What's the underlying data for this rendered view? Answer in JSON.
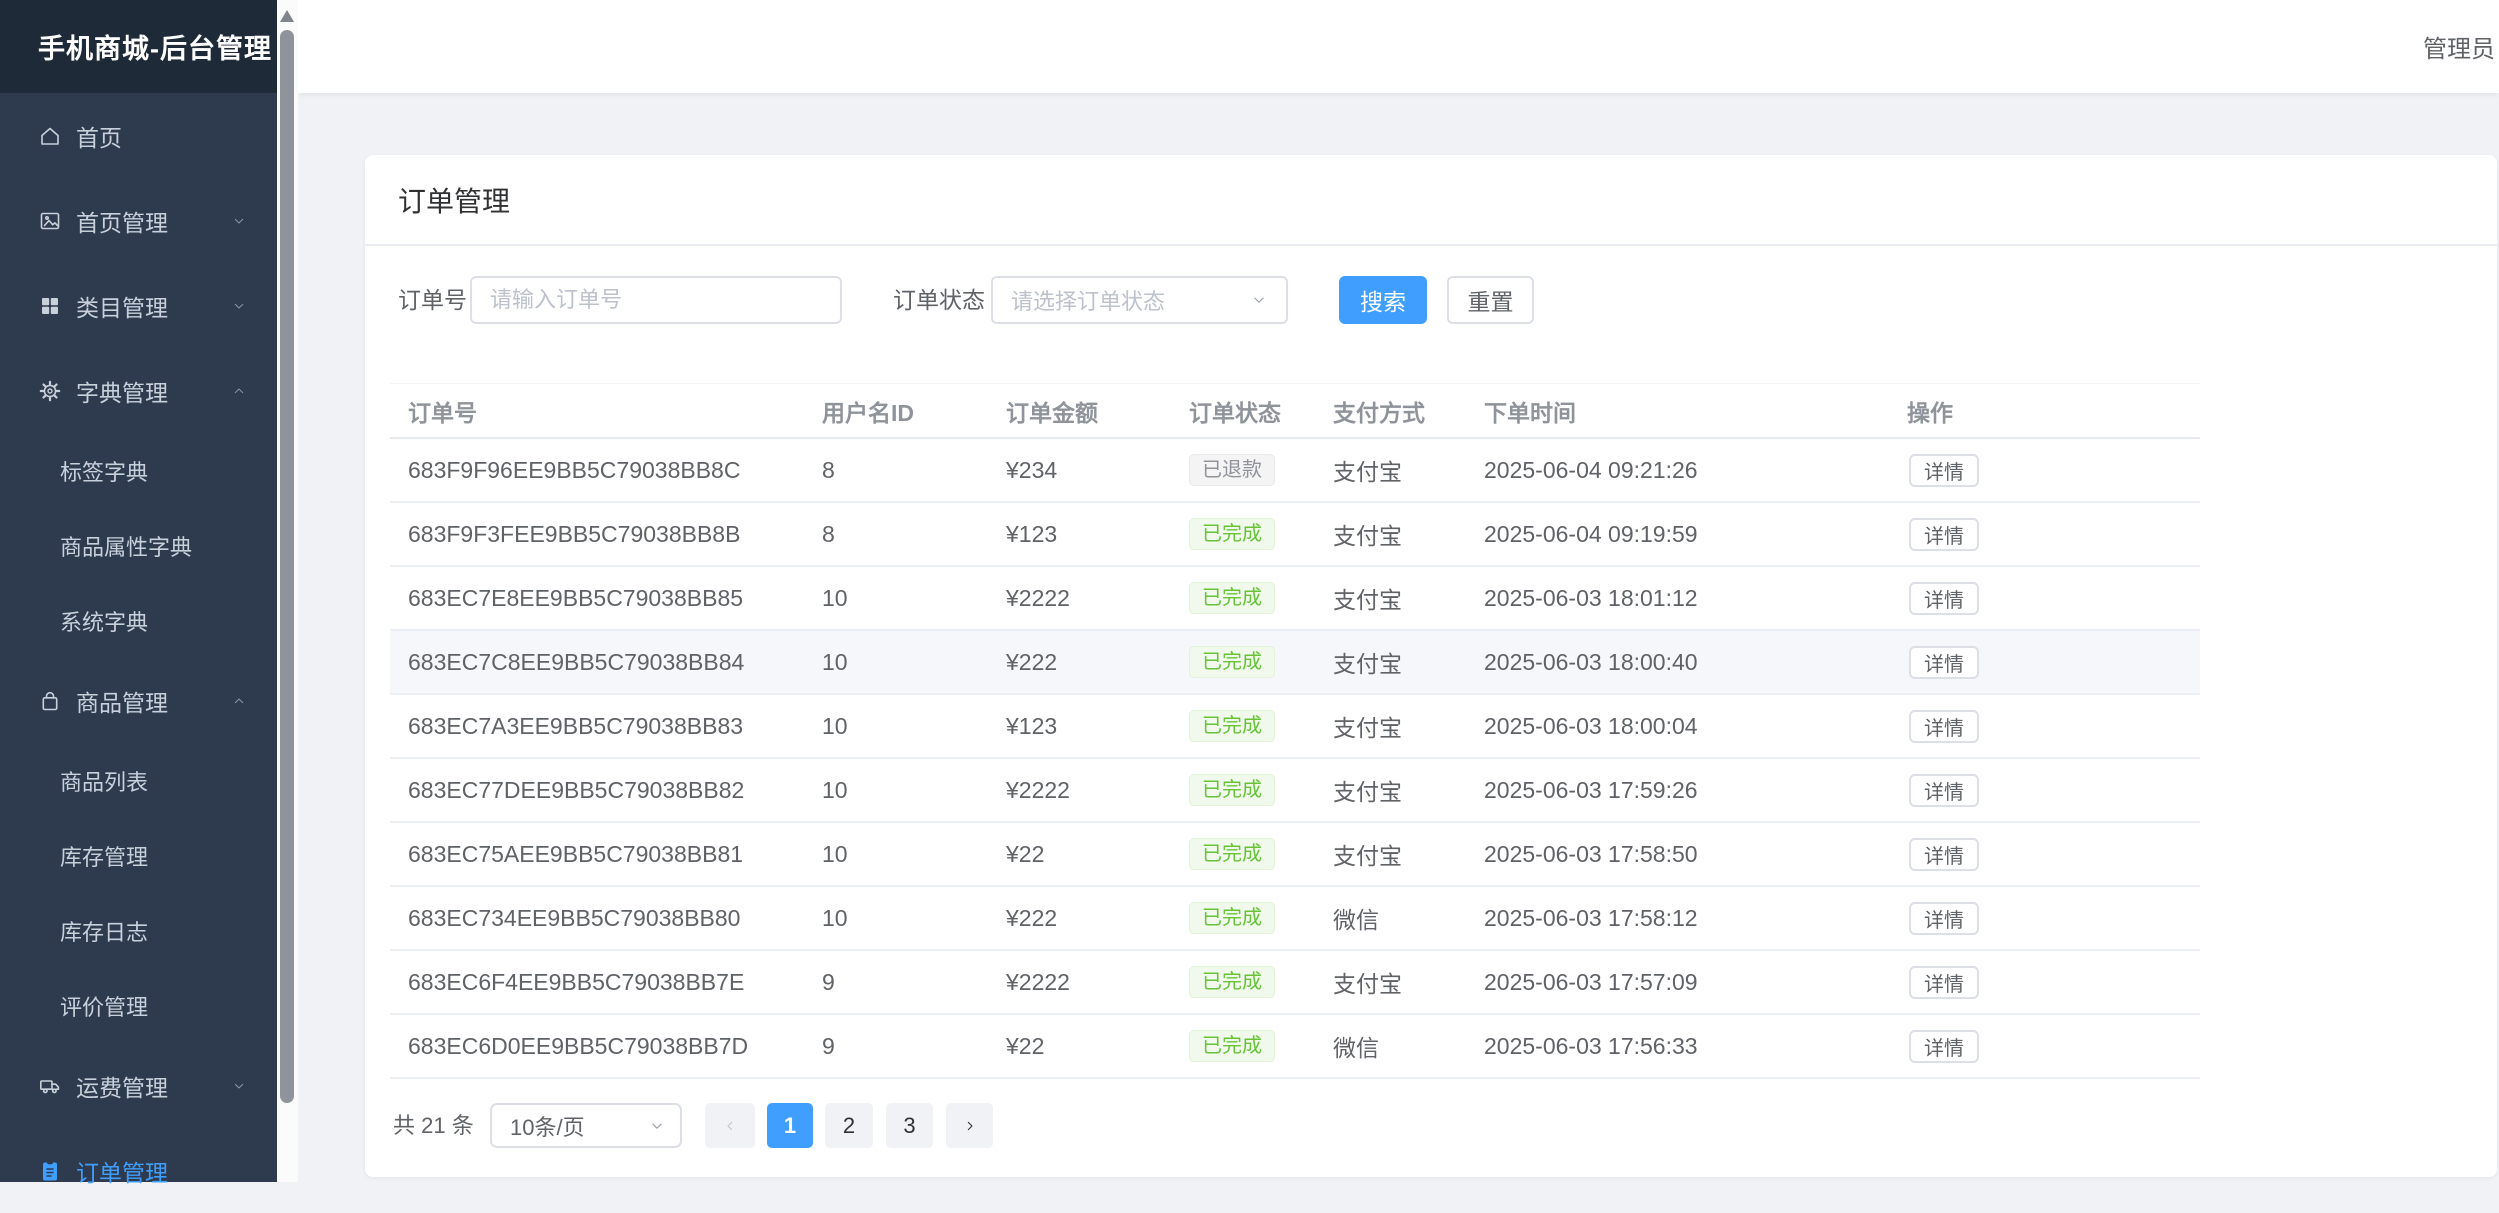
{
  "colors": {
    "accent": "#409eff",
    "success": "#67c23a",
    "info": "#909399",
    "sidebar_bg": "#2e3b4e",
    "sidebar_header_bg": "#1f2a38"
  },
  "app": {
    "title": "手机商城-后台管理",
    "user": "管理员"
  },
  "sidebar": {
    "items": [
      {
        "key": "home",
        "label": "首页",
        "icon": "home-icon",
        "type": "item",
        "expand": null,
        "active": false
      },
      {
        "key": "home-mgmt",
        "label": "首页管理",
        "icon": "image-icon",
        "type": "item",
        "expand": "down",
        "active": false
      },
      {
        "key": "category-mgmt",
        "label": "类目管理",
        "icon": "grid-icon",
        "type": "item",
        "expand": "down",
        "active": false
      },
      {
        "key": "dict-mgmt",
        "label": "字典管理",
        "icon": "gear-icon",
        "type": "item",
        "expand": "up",
        "active": false
      },
      {
        "key": "tag-dict",
        "label": "标签字典",
        "icon": null,
        "type": "sub",
        "expand": null,
        "active": false
      },
      {
        "key": "attr-dict",
        "label": "商品属性字典",
        "icon": null,
        "type": "sub",
        "expand": null,
        "active": false
      },
      {
        "key": "system-dict",
        "label": "系统字典",
        "icon": null,
        "type": "sub",
        "expand": null,
        "active": false
      },
      {
        "key": "product-mgmt",
        "label": "商品管理",
        "icon": "bag-icon",
        "type": "item",
        "expand": "up",
        "active": false
      },
      {
        "key": "product-list",
        "label": "商品列表",
        "icon": null,
        "type": "sub",
        "expand": null,
        "active": false
      },
      {
        "key": "stock-mgmt",
        "label": "库存管理",
        "icon": null,
        "type": "sub",
        "expand": null,
        "active": false
      },
      {
        "key": "stock-log",
        "label": "库存日志",
        "icon": null,
        "type": "sub",
        "expand": null,
        "active": false
      },
      {
        "key": "review-mgmt",
        "label": "评价管理",
        "icon": null,
        "type": "sub",
        "expand": null,
        "active": false
      },
      {
        "key": "shipping-mgmt",
        "label": "运费管理",
        "icon": "truck-icon",
        "type": "item",
        "expand": "down",
        "active": false
      },
      {
        "key": "order-mgmt",
        "label": "订单管理",
        "icon": "order-icon",
        "type": "item",
        "expand": null,
        "active": true
      }
    ]
  },
  "page": {
    "title": "订单管理"
  },
  "filters": {
    "order_no_label": "订单号",
    "order_no_placeholder": "请输入订单号",
    "order_no_value": "",
    "status_label": "订单状态",
    "status_placeholder": "请选择订单状态",
    "search_label": "搜索",
    "reset_label": "重置"
  },
  "table": {
    "columns": [
      "订单号",
      "用户名ID",
      "订单金额",
      "订单状态",
      "支付方式",
      "下单时间",
      "操作"
    ],
    "action_label": "详情",
    "hover_row": 4,
    "rows": [
      {
        "order_no": "683F9F96EE9BB5C79038BB8C",
        "user_id": "8",
        "amount": "¥234",
        "status": "已退款",
        "status_type": "info",
        "payment": "支付宝",
        "time": "2025-06-04 09:21:26"
      },
      {
        "order_no": "683F9F3FEE9BB5C79038BB8B",
        "user_id": "8",
        "amount": "¥123",
        "status": "已完成",
        "status_type": "success",
        "payment": "支付宝",
        "time": "2025-06-04 09:19:59"
      },
      {
        "order_no": "683EC7E8EE9BB5C79038BB85",
        "user_id": "10",
        "amount": "¥2222",
        "status": "已完成",
        "status_type": "success",
        "payment": "支付宝",
        "time": "2025-06-03 18:01:12"
      },
      {
        "order_no": "683EC7C8EE9BB5C79038BB84",
        "user_id": "10",
        "amount": "¥222",
        "status": "已完成",
        "status_type": "success",
        "payment": "支付宝",
        "time": "2025-06-03 18:00:40"
      },
      {
        "order_no": "683EC7A3EE9BB5C79038BB83",
        "user_id": "10",
        "amount": "¥123",
        "status": "已完成",
        "status_type": "success",
        "payment": "支付宝",
        "time": "2025-06-03 18:00:04"
      },
      {
        "order_no": "683EC77DEE9BB5C79038BB82",
        "user_id": "10",
        "amount": "¥2222",
        "status": "已完成",
        "status_type": "success",
        "payment": "支付宝",
        "time": "2025-06-03 17:59:26"
      },
      {
        "order_no": "683EC75AEE9BB5C79038BB81",
        "user_id": "10",
        "amount": "¥22",
        "status": "已完成",
        "status_type": "success",
        "payment": "支付宝",
        "time": "2025-06-03 17:58:50"
      },
      {
        "order_no": "683EC734EE9BB5C79038BB80",
        "user_id": "10",
        "amount": "¥222",
        "status": "已完成",
        "status_type": "success",
        "payment": "微信",
        "time": "2025-06-03 17:58:12"
      },
      {
        "order_no": "683EC6F4EE9BB5C79038BB7E",
        "user_id": "9",
        "amount": "¥2222",
        "status": "已完成",
        "status_type": "success",
        "payment": "支付宝",
        "time": "2025-06-03 17:57:09"
      },
      {
        "order_no": "683EC6D0EE9BB5C79038BB7D",
        "user_id": "9",
        "amount": "¥22",
        "status": "已完成",
        "status_type": "success",
        "payment": "微信",
        "time": "2025-06-03 17:56:33"
      }
    ]
  },
  "pagination": {
    "total": "共 21 条",
    "page_size": "10条/页",
    "pages": [
      "1",
      "2",
      "3"
    ],
    "active_page": "1"
  }
}
